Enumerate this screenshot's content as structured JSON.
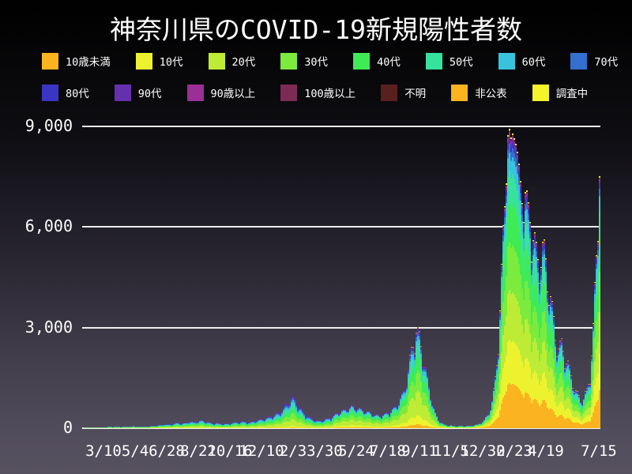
{
  "title": "神奈川県のCOVID-19新規陽性者数",
  "legend": {
    "rows": [
      [
        {
          "label": "10歳未満",
          "color": "#FBB41F"
        },
        {
          "label": "10代",
          "color": "#EDF22F"
        },
        {
          "label": "20代",
          "color": "#BEEC36"
        },
        {
          "label": "30代",
          "color": "#7CEB3D"
        },
        {
          "label": "40代",
          "color": "#3FEB54"
        },
        {
          "label": "50代",
          "color": "#36E29D"
        },
        {
          "label": "60代",
          "color": "#38C3DC"
        },
        {
          "label": "70代",
          "color": "#3470CD"
        }
      ],
      [
        {
          "label": "80代",
          "color": "#3B35C4"
        },
        {
          "label": "90代",
          "color": "#6430AE"
        },
        {
          "label": "90歳以上",
          "color": "#9C2F96"
        },
        {
          "label": "100歳以上",
          "color": "#7C2A56"
        },
        {
          "label": "不明",
          "color": "#5A2020"
        },
        {
          "label": "非公表",
          "color": "#FBB41F"
        },
        {
          "label": "調査中",
          "color": "#F4F42B"
        }
      ]
    ]
  },
  "y_axis": {
    "ticks": [
      "9,000",
      "6,000",
      "3,000",
      "0"
    ],
    "tick_values": [
      9000,
      6000,
      3000,
      0
    ]
  },
  "x_axis": {
    "ticks": [
      "3/10",
      "5/4",
      "6/28",
      "8/22",
      "10/16",
      "12/10",
      "2/3",
      "3/30",
      "5/24",
      "7/18",
      "9/11",
      "11/5",
      "12/30",
      "2/23",
      "4/19",
      "7/15"
    ]
  },
  "chart_data": {
    "type": "bar",
    "stacked": true,
    "title": "神奈川県のCOVID-19新規陽性者数",
    "xlabel": "",
    "ylabel": "",
    "ylim": [
      0,
      9300
    ],
    "yticks": [
      0,
      3000,
      6000,
      9000
    ],
    "x_tick_labels": [
      "3/10",
      "5/4",
      "6/28",
      "8/22",
      "10/16",
      "12/10",
      "2/3",
      "3/30",
      "5/24",
      "7/18",
      "9/11",
      "11/5",
      "12/30",
      "2/23",
      "4/19",
      "7/15"
    ],
    "grid": true,
    "legend_position": "top",
    "groups": [
      "10歳未満",
      "10代",
      "20代",
      "30代",
      "40代",
      "50代",
      "60代",
      "70代",
      "80代",
      "90代",
      "90歳以上",
      "100歳以上",
      "不明",
      "非公表",
      "調査中"
    ],
    "layer_colors": [
      "#FBB41F",
      "#EDF22F",
      "#BEEC36",
      "#7CEB3D",
      "#3FEB54",
      "#36E29D",
      "#38C3DC",
      "#3470CD",
      "#3B35C4",
      "#6430AE",
      "#9C2F96",
      "#7C2A56",
      "#5A2020",
      "#F4F42B"
    ],
    "layer_order_note": "bottom-to-top: 10歳未満,10代,20代,30代,40代,50代,60代,70代,80代,90代,90歳以上,100歳以上,不明,調査中(top cap); 非公表 shares the orange of 10歳未満",
    "era_profiles": [
      {
        "from_frac": 0.0,
        "fractions": [
          0.02,
          0.05,
          0.2,
          0.18,
          0.15,
          0.13,
          0.1,
          0.08,
          0.045,
          0.02,
          0.012,
          0.006,
          0.004,
          0.003
        ]
      },
      {
        "from_frac": 0.485,
        "fractions": [
          0.04,
          0.09,
          0.24,
          0.2,
          0.16,
          0.11,
          0.07,
          0.04,
          0.02,
          0.012,
          0.008,
          0.004,
          0.003,
          0.003
        ]
      },
      {
        "from_frac": 0.758,
        "fractions": [
          0.15,
          0.145,
          0.165,
          0.16,
          0.14,
          0.1,
          0.06,
          0.03,
          0.018,
          0.01,
          0.008,
          0.004,
          0.004,
          0.006
        ]
      }
    ],
    "daily_total_envelope": [
      [
        0,
        3
      ],
      [
        0.012,
        8
      ],
      [
        0.024,
        12
      ],
      [
        0.036,
        20
      ],
      [
        0.048,
        32
      ],
      [
        0.061,
        42
      ],
      [
        0.07,
        30
      ],
      [
        0.079,
        52
      ],
      [
        0.088,
        40
      ],
      [
        0.097,
        58
      ],
      [
        0.106,
        44
      ],
      [
        0.115,
        36
      ],
      [
        0.124,
        48
      ],
      [
        0.136,
        62
      ],
      [
        0.148,
        85
      ],
      [
        0.161,
        115
      ],
      [
        0.17,
        95
      ],
      [
        0.182,
        150
      ],
      [
        0.194,
        125
      ],
      [
        0.206,
        190
      ],
      [
        0.218,
        165
      ],
      [
        0.23,
        225
      ],
      [
        0.239,
        185
      ],
      [
        0.248,
        155
      ],
      [
        0.261,
        135
      ],
      [
        0.273,
        120
      ],
      [
        0.285,
        140
      ],
      [
        0.297,
        160
      ],
      [
        0.309,
        185
      ],
      [
        0.321,
        165
      ],
      [
        0.333,
        210
      ],
      [
        0.345,
        250
      ],
      [
        0.358,
        300
      ],
      [
        0.37,
        380
      ],
      [
        0.379,
        450
      ],
      [
        0.388,
        560
      ],
      [
        0.394,
        680
      ],
      [
        0.4,
        800
      ],
      [
        0.406,
        900
      ],
      [
        0.412,
        780
      ],
      [
        0.418,
        640
      ],
      [
        0.424,
        500
      ],
      [
        0.43,
        400
      ],
      [
        0.439,
        300
      ],
      [
        0.448,
        240
      ],
      [
        0.458,
        205
      ],
      [
        0.467,
        235
      ],
      [
        0.476,
        285
      ],
      [
        0.485,
        350
      ],
      [
        0.494,
        430
      ],
      [
        0.503,
        500
      ],
      [
        0.512,
        550
      ],
      [
        0.521,
        620
      ],
      [
        0.53,
        585
      ],
      [
        0.539,
        540
      ],
      [
        0.548,
        480
      ],
      [
        0.558,
        420
      ],
      [
        0.567,
        370
      ],
      [
        0.576,
        350
      ],
      [
        0.585,
        390
      ],
      [
        0.594,
        460
      ],
      [
        0.603,
        580
      ],
      [
        0.612,
        760
      ],
      [
        0.621,
        1050
      ],
      [
        0.627,
        1400
      ],
      [
        0.633,
        1900
      ],
      [
        0.639,
        2400
      ],
      [
        0.645,
        2780
      ],
      [
        0.652,
        2500
      ],
      [
        0.658,
        2100
      ],
      [
        0.664,
        1600
      ],
      [
        0.67,
        1150
      ],
      [
        0.676,
        750
      ],
      [
        0.682,
        430
      ],
      [
        0.688,
        250
      ],
      [
        0.694,
        150
      ],
      [
        0.7,
        105
      ],
      [
        0.709,
        80
      ],
      [
        0.721,
        62
      ],
      [
        0.733,
        55
      ],
      [
        0.745,
        60
      ],
      [
        0.758,
        85
      ],
      [
        0.767,
        120
      ],
      [
        0.776,
        220
      ],
      [
        0.785,
        420
      ],
      [
        0.791,
        700
      ],
      [
        0.797,
        1200
      ],
      [
        0.803,
        2200
      ],
      [
        0.809,
        3800
      ],
      [
        0.815,
        5800
      ],
      [
        0.821,
        8200
      ],
      [
        0.824,
        9200
      ],
      [
        0.827,
        8100
      ],
      [
        0.833,
        8700
      ],
      [
        0.836,
        9000
      ],
      [
        0.842,
        7800
      ],
      [
        0.848,
        7000
      ],
      [
        0.855,
        6800
      ],
      [
        0.861,
        5900
      ],
      [
        0.867,
        6100
      ],
      [
        0.873,
        5300
      ],
      [
        0.879,
        4700
      ],
      [
        0.885,
        4900
      ],
      [
        0.891,
        5000
      ],
      [
        0.897,
        4550
      ],
      [
        0.903,
        3900
      ],
      [
        0.909,
        3200
      ],
      [
        0.915,
        2600
      ],
      [
        0.921,
        2250
      ],
      [
        0.927,
        2350
      ],
      [
        0.933,
        2050
      ],
      [
        0.939,
        1800
      ],
      [
        0.945,
        1450
      ],
      [
        0.952,
        1100
      ],
      [
        0.958,
        930
      ],
      [
        0.964,
        800
      ],
      [
        0.97,
        880
      ],
      [
        0.976,
        1080
      ],
      [
        0.982,
        1600
      ],
      [
        0.988,
        2800
      ],
      [
        0.994,
        4900
      ],
      [
        1,
        7600
      ]
    ]
  },
  "colors": {
    "text": "#ffffff",
    "gridline": "#ffffff",
    "background_top": "#000000",
    "background_bottom": "#56515f"
  }
}
